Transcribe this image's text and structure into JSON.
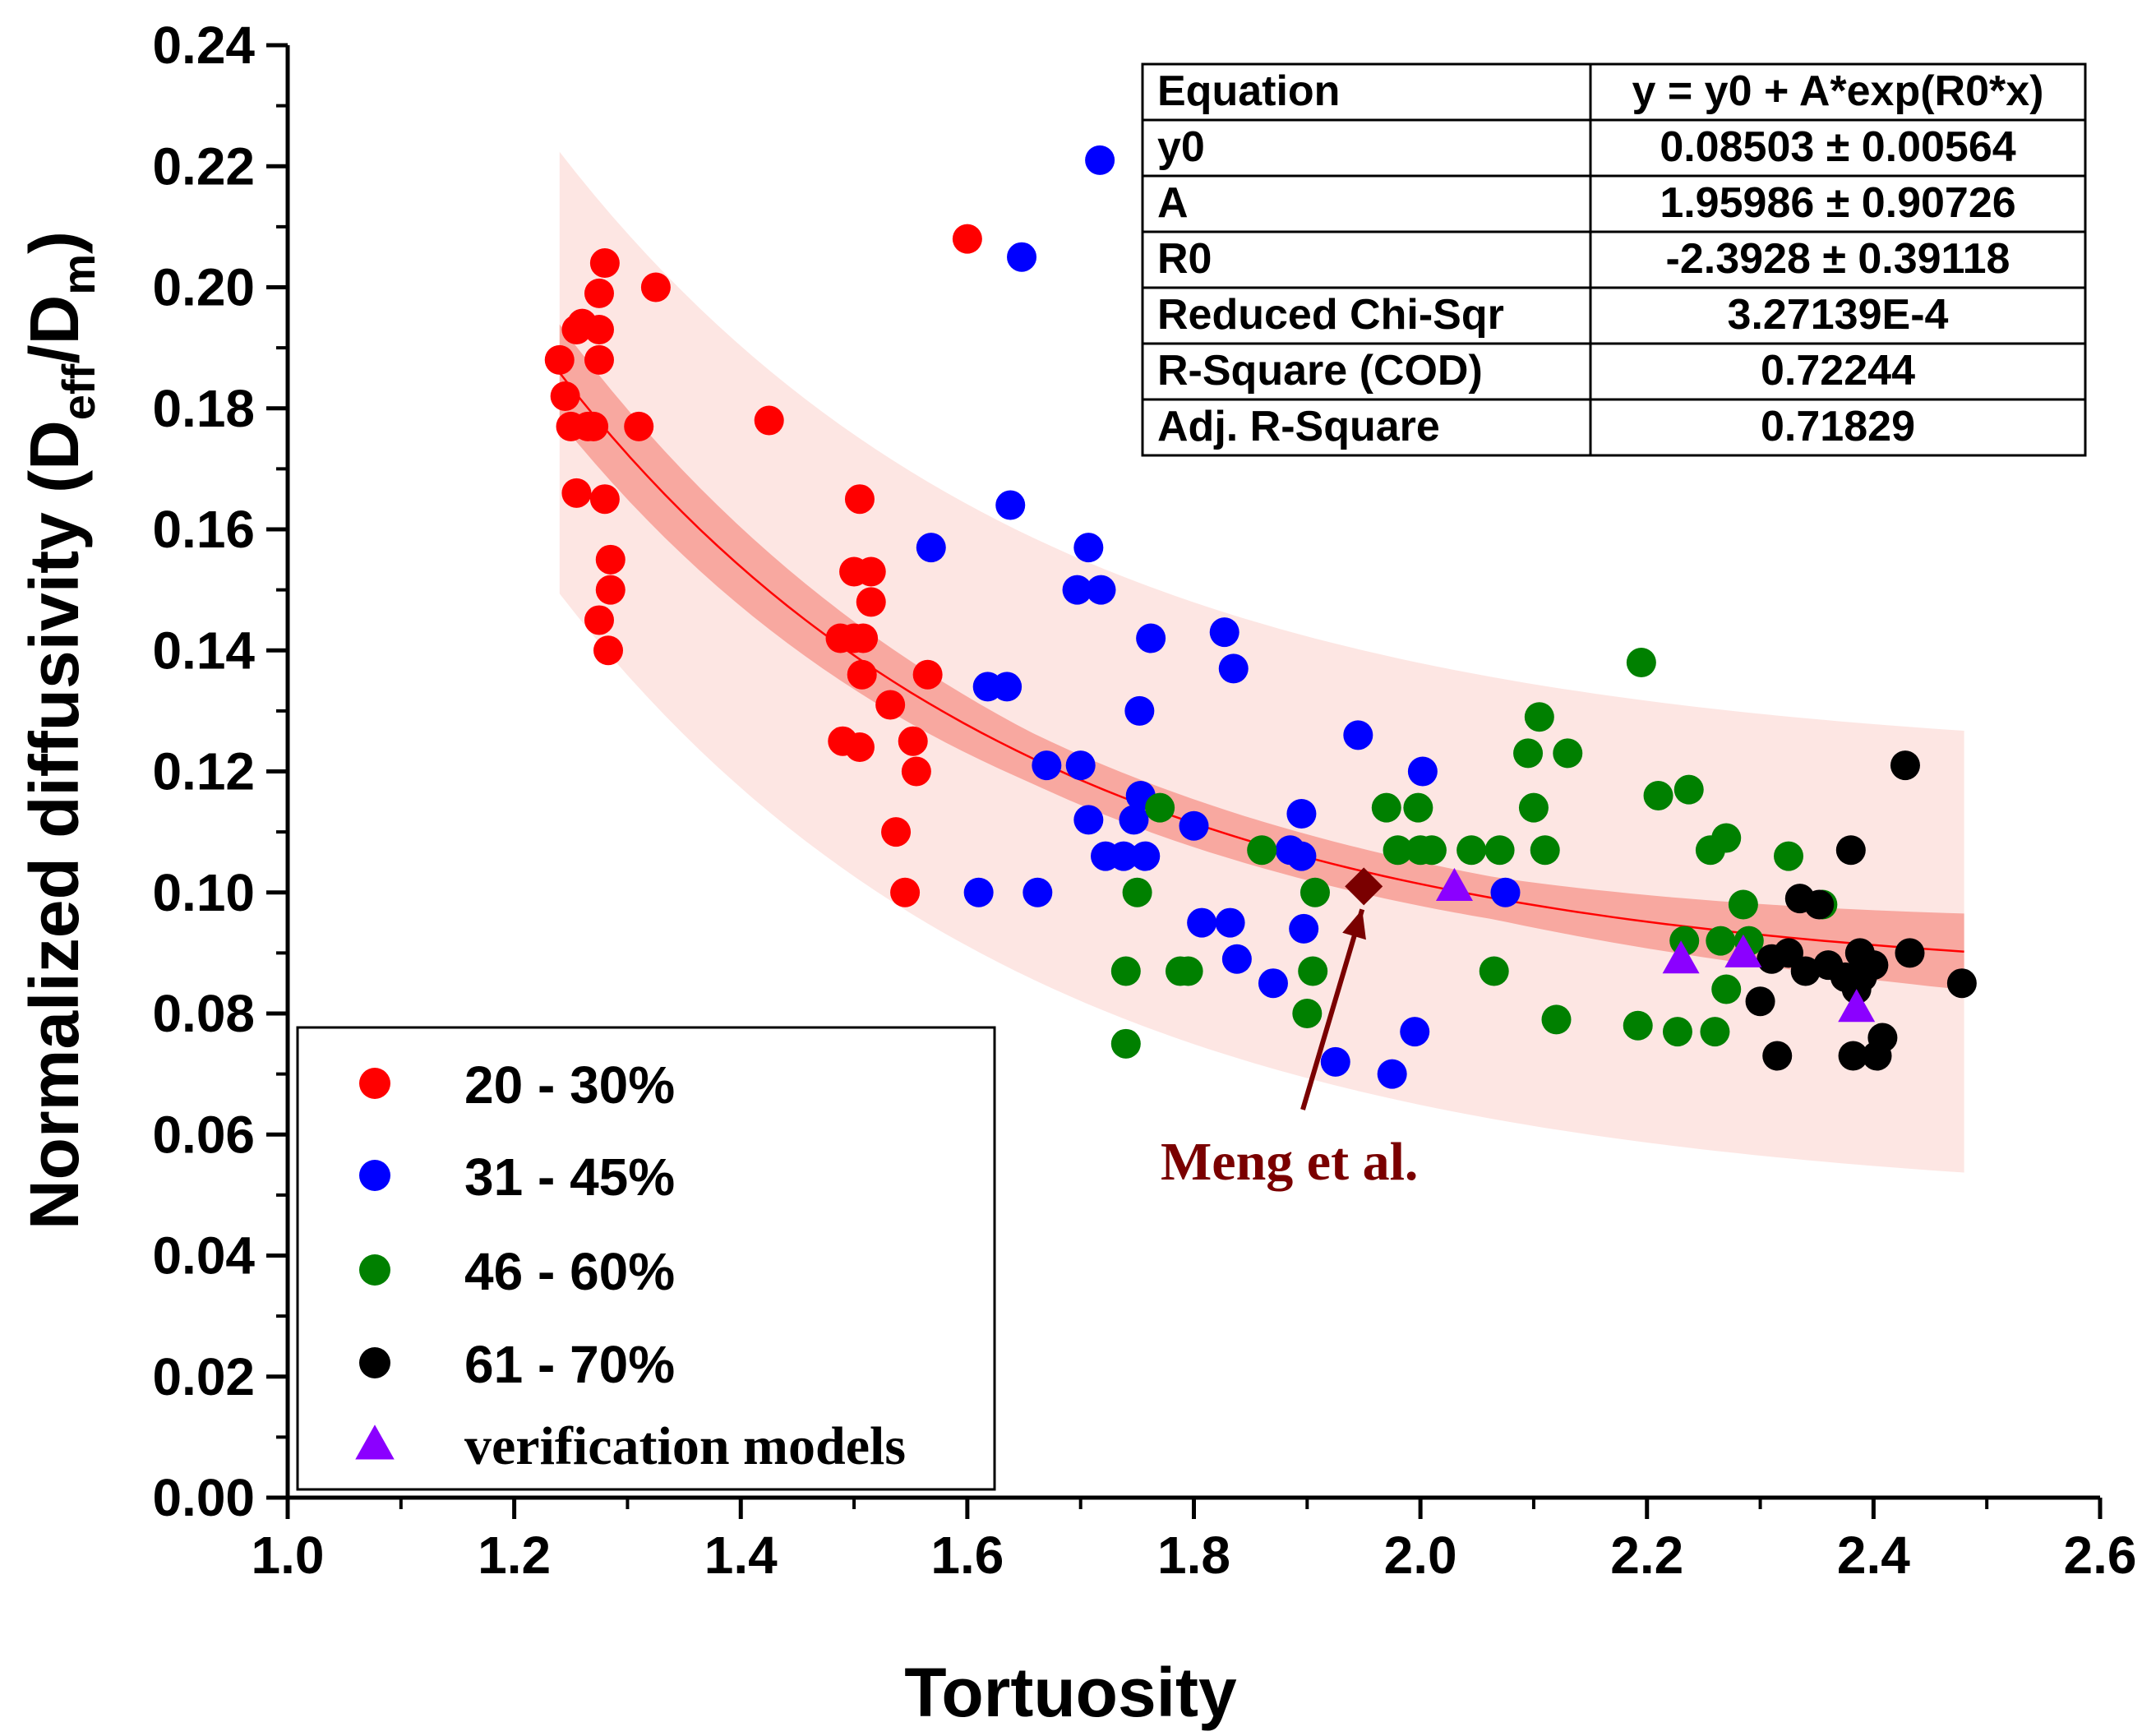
{
  "chart_data": {
    "type": "scatter",
    "title": "",
    "xlabel": "Tortuosity",
    "ylabel": {
      "prefix": "Normalized diffusivity (D",
      "sub1": "eff",
      "mid": "/D",
      "sub2": "m",
      "suffix": ")"
    },
    "xlim": [
      1.0,
      2.6
    ],
    "ylim": [
      0.0,
      0.24
    ],
    "xticks": [
      1.0,
      1.2,
      1.4,
      1.6,
      1.8,
      2.0,
      2.2,
      2.4,
      2.6
    ],
    "xtick_labels": [
      "1.0",
      "1.2",
      "1.4",
      "1.6",
      "1.8",
      "2.0",
      "2.2",
      "2.4",
      "2.6"
    ],
    "yticks": [
      0.0,
      0.02,
      0.04,
      0.06,
      0.08,
      0.1,
      0.12,
      0.14,
      0.16,
      0.18,
      0.2,
      0.22,
      0.24
    ],
    "ytick_labels": [
      "0.00",
      "0.02",
      "0.04",
      "0.06",
      "0.08",
      "0.10",
      "0.12",
      "0.14",
      "0.16",
      "0.18",
      "0.20",
      "0.22",
      "0.24"
    ],
    "grid": false,
    "legend_position": "bottom-left",
    "fit": {
      "model": "y = y0 + A*exp(R0*x)",
      "y0": 0.08503,
      "A": 1.95986,
      "R0": -2.3928,
      "x_range": [
        1.24,
        2.48
      ],
      "confidence_halfwidth": [
        0.008,
        0.0042,
        0.0035,
        0.0063
      ],
      "prediction_halfwidth": [
        0.0365,
        0.0365
      ],
      "color": "#ff0000"
    },
    "fit_table": [
      [
        "Equation",
        "y = y0 + A*exp(R0*x)"
      ],
      [
        "y0",
        "0.08503 ± 0.00564"
      ],
      [
        "A",
        "1.95986 ± 0.90726"
      ],
      [
        "R0",
        "-2.3928 ± 0.39118"
      ],
      [
        "Reduced Chi-Sqr",
        "3.27139E-4"
      ],
      [
        "R-Square (COD)",
        "0.72244"
      ],
      [
        "Adj. R-Square",
        "0.71829"
      ]
    ],
    "series": [
      {
        "name": "20 - 30%",
        "marker": "circle",
        "color": "#ff0000",
        "points": [
          [
            1.24,
            0.188
          ],
          [
            1.245,
            0.182
          ],
          [
            1.25,
            0.177
          ],
          [
            1.255,
            0.193
          ],
          [
            1.26,
            0.194
          ],
          [
            1.265,
            0.177
          ],
          [
            1.27,
            0.177
          ],
          [
            1.275,
            0.193
          ],
          [
            1.275,
            0.199
          ],
          [
            1.28,
            0.204
          ],
          [
            1.275,
            0.188
          ],
          [
            1.255,
            0.166
          ],
          [
            1.28,
            0.165
          ],
          [
            1.285,
            0.155
          ],
          [
            1.285,
            0.15
          ],
          [
            1.275,
            0.145
          ],
          [
            1.283,
            0.14
          ],
          [
            1.31,
            0.177
          ],
          [
            1.325,
            0.2
          ],
          [
            1.425,
            0.178
          ],
          [
            1.488,
            0.142
          ],
          [
            1.5,
            0.142
          ],
          [
            1.508,
            0.142
          ],
          [
            1.505,
            0.165
          ],
          [
            1.5,
            0.153
          ],
          [
            1.515,
            0.153
          ],
          [
            1.515,
            0.148
          ],
          [
            1.507,
            0.136
          ],
          [
            1.49,
            0.125
          ],
          [
            1.505,
            0.124
          ],
          [
            1.532,
            0.131
          ],
          [
            1.552,
            0.125
          ],
          [
            1.555,
            0.12
          ],
          [
            1.565,
            0.136
          ],
          [
            1.537,
            0.11
          ],
          [
            1.545,
            0.1
          ],
          [
            1.6,
            0.208
          ]
        ]
      },
      {
        "name": "31 - 45%",
        "marker": "circle",
        "color": "#0000ff",
        "points": [
          [
            1.568,
            0.157
          ],
          [
            1.61,
            0.1
          ],
          [
            1.618,
            0.134
          ],
          [
            1.635,
            0.134
          ],
          [
            1.638,
            0.164
          ],
          [
            1.648,
            0.205
          ],
          [
            1.662,
            0.1
          ],
          [
            1.67,
            0.121
          ],
          [
            1.7,
            0.121
          ],
          [
            1.697,
            0.15
          ],
          [
            1.718,
            0.15
          ],
          [
            1.707,
            0.157
          ],
          [
            1.717,
            0.221
          ],
          [
            1.707,
            0.112
          ],
          [
            1.722,
            0.106
          ],
          [
            1.738,
            0.106
          ],
          [
            1.747,
            0.112
          ],
          [
            1.752,
            0.13
          ],
          [
            1.753,
            0.116
          ],
          [
            1.757,
            0.106
          ],
          [
            1.762,
            0.142
          ],
          [
            1.8,
            0.111
          ],
          [
            1.807,
            0.095
          ],
          [
            1.827,
            0.143
          ],
          [
            1.832,
            0.095
          ],
          [
            1.835,
            0.137
          ],
          [
            1.838,
            0.089
          ],
          [
            1.87,
            0.085
          ],
          [
            1.885,
            0.107
          ],
          [
            1.895,
            0.113
          ],
          [
            1.895,
            0.106
          ],
          [
            1.897,
            0.094
          ],
          [
            1.925,
            0.072
          ],
          [
            1.945,
            0.126
          ],
          [
            1.975,
            0.07
          ],
          [
            1.995,
            0.077
          ],
          [
            2.002,
            0.12
          ],
          [
            2.075,
            0.1
          ]
        ]
      },
      {
        "name": "46 - 60%",
        "marker": "circle",
        "color": "#008000",
        "points": [
          [
            1.74,
            0.087
          ],
          [
            1.74,
            0.075
          ],
          [
            1.75,
            0.1
          ],
          [
            1.77,
            0.114
          ],
          [
            1.788,
            0.087
          ],
          [
            1.795,
            0.087
          ],
          [
            1.86,
            0.107
          ],
          [
            1.9,
            0.08
          ],
          [
            1.905,
            0.087
          ],
          [
            1.907,
            0.1
          ],
          [
            1.97,
            0.114
          ],
          [
            1.98,
            0.107
          ],
          [
            1.998,
            0.114
          ],
          [
            2.0,
            0.107
          ],
          [
            2.01,
            0.107
          ],
          [
            2.045,
            0.107
          ],
          [
            2.065,
            0.087
          ],
          [
            2.07,
            0.107
          ],
          [
            2.095,
            0.123
          ],
          [
            2.1,
            0.114
          ],
          [
            2.105,
            0.129
          ],
          [
            2.11,
            0.107
          ],
          [
            2.12,
            0.079
          ],
          [
            2.13,
            0.123
          ],
          [
            2.192,
            0.078
          ],
          [
            2.195,
            0.138
          ],
          [
            2.21,
            0.116
          ],
          [
            2.227,
            0.077
          ],
          [
            2.233,
            0.092
          ],
          [
            2.237,
            0.117
          ],
          [
            2.256,
            0.107
          ],
          [
            2.26,
            0.077
          ],
          [
            2.265,
            0.092
          ],
          [
            2.27,
            0.109
          ],
          [
            2.27,
            0.084
          ],
          [
            2.285,
            0.098
          ],
          [
            2.29,
            0.092
          ],
          [
            2.325,
            0.106
          ],
          [
            2.355,
            0.098
          ]
        ]
      },
      {
        "name": "61 - 70%",
        "marker": "circle",
        "color": "#000000",
        "points": [
          [
            2.3,
            0.082
          ],
          [
            2.31,
            0.089
          ],
          [
            2.315,
            0.073
          ],
          [
            2.325,
            0.09
          ],
          [
            2.335,
            0.099
          ],
          [
            2.34,
            0.087
          ],
          [
            2.352,
            0.098
          ],
          [
            2.36,
            0.088
          ],
          [
            2.375,
            0.086
          ],
          [
            2.38,
            0.107
          ],
          [
            2.382,
            0.073
          ],
          [
            2.385,
            0.084
          ],
          [
            2.388,
            0.09
          ],
          [
            2.39,
            0.086
          ],
          [
            2.4,
            0.088
          ],
          [
            2.403,
            0.073
          ],
          [
            2.408,
            0.076
          ],
          [
            2.428,
            0.121
          ],
          [
            2.432,
            0.09
          ],
          [
            2.478,
            0.085
          ]
        ]
      },
      {
        "name": "verification models",
        "marker": "triangle",
        "color": "#8b00ff",
        "points": [
          [
            2.03,
            0.101
          ],
          [
            2.23,
            0.089
          ],
          [
            2.285,
            0.09
          ],
          [
            2.385,
            0.081
          ]
        ]
      }
    ],
    "annotations": [
      {
        "text": "Meng et al.",
        "point": [
          1.95,
          0.101
        ],
        "marker": "diamond",
        "color": "#7a0000"
      }
    ]
  }
}
